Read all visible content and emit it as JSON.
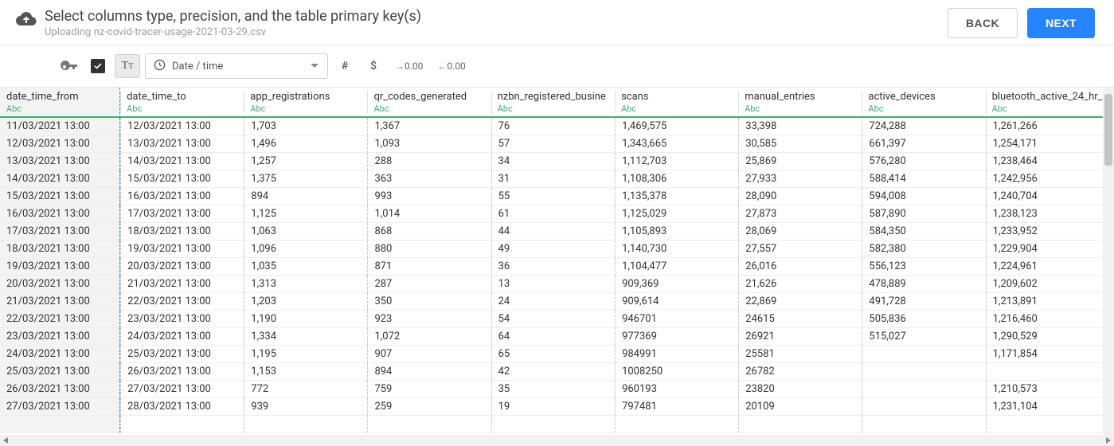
{
  "header": {
    "title": "Select columns type, precision, and the table primary key(s)",
    "subtitle": "Uploading nz-covid-tracer-usage-2021-03-29.csv",
    "back_label": "BACK",
    "next_label": "NEXT"
  },
  "toolbar": {
    "type_selector_label": "Date / time",
    "inc_decimal_label": "→0.00",
    "dec_decimal_label": "←0.00"
  },
  "colors": {
    "accent_green": "#33b864",
    "accent_blue": "#2684ff",
    "fixed_col_bg": "#f3f3f3",
    "grid_line": "#eeeeee",
    "dashed_border": "#c8c8c8"
  },
  "table": {
    "type_label": "Abc",
    "columns": [
      "date_time_from",
      "date_time_to",
      "app_registrations",
      "qr_codes_generated",
      "nzbn_registered_busine",
      "scans",
      "manual_entries",
      "active_devices",
      "bluetooth_active_24_hr_"
    ],
    "rows": [
      [
        "11/03/2021 13:00",
        "12/03/2021 13:00",
        "1,703",
        "1,367",
        "76",
        "1,469,575",
        "33,398",
        "724,288",
        "1,261,266"
      ],
      [
        "12/03/2021 13:00",
        "13/03/2021 13:00",
        "1,496",
        "1,093",
        "57",
        "1,343,665",
        "30,585",
        "661,397",
        "1,254,171"
      ],
      [
        "13/03/2021 13:00",
        "14/03/2021 13:00",
        "1,257",
        "288",
        "34",
        "1,112,703",
        "25,869",
        "576,280",
        "1,238,464"
      ],
      [
        "14/03/2021 13:00",
        "15/03/2021 13:00",
        "1,375",
        "363",
        "31",
        "1,108,306",
        "27,933",
        "588,414",
        "1,242,956"
      ],
      [
        "15/03/2021 13:00",
        "16/03/2021 13:00",
        "894",
        "993",
        "55",
        "1,135,378",
        "28,090",
        "594,008",
        "1,240,704"
      ],
      [
        "16/03/2021 13:00",
        "17/03/2021 13:00",
        "1,125",
        "1,014",
        "61",
        "1,125,029",
        "27,873",
        "587,890",
        "1,238,123"
      ],
      [
        "17/03/2021 13:00",
        "18/03/2021 13:00",
        "1,063",
        "868",
        "44",
        "1,105,893",
        "28,069",
        "584,350",
        "1,233,952"
      ],
      [
        "18/03/2021 13:00",
        "19/03/2021 13:00",
        "1,096",
        "880",
        "49",
        "1,140,730",
        "27,557",
        "582,380",
        "1,229,904"
      ],
      [
        "19/03/2021 13:00",
        "20/03/2021 13:00",
        "1,035",
        "871",
        "36",
        "1,104,477",
        "26,016",
        "556,123",
        "1,224,961"
      ],
      [
        "20/03/2021 13:00",
        "21/03/2021 13:00",
        "1,313",
        "287",
        "13",
        "909,369",
        "21,626",
        "478,889",
        "1,209,602"
      ],
      [
        "21/03/2021 13:00",
        "22/03/2021 13:00",
        "1,203",
        "350",
        "24",
        "909,614",
        "22,869",
        "491,728",
        "1,213,891"
      ],
      [
        "22/03/2021 13:00",
        "23/03/2021 13:00",
        "1,190",
        "923",
        "54",
        "946701",
        "24615",
        "505,836",
        "1,216,460"
      ],
      [
        "23/03/2021 13:00",
        "24/03/2021 13:00",
        "1,334",
        "1,072",
        "64",
        "977369",
        "26921",
        "515,027",
        "1,290,529"
      ],
      [
        "24/03/2021 13:00",
        "25/03/2021 13:00",
        "1,195",
        "907",
        "65",
        "984991",
        "25581",
        "",
        "1,171,854"
      ],
      [
        "25/03/2021 13:00",
        "26/03/2021 13:00",
        "1,153",
        "894",
        "42",
        "1008250",
        "26782",
        "",
        ""
      ],
      [
        "26/03/2021 13:00",
        "27/03/2021 13:00",
        "772",
        "759",
        "35",
        "960193",
        "23820",
        "",
        "1,210,573"
      ],
      [
        "27/03/2021 13:00",
        "28/03/2021 13:00",
        "939",
        "259",
        "19",
        "797481",
        "20109",
        "",
        "1,231,104"
      ]
    ]
  }
}
